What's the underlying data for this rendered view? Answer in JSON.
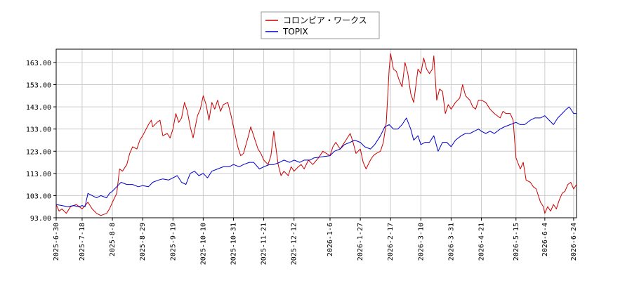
{
  "chart_data": {
    "type": "line",
    "title": "",
    "xlabel": "",
    "ylabel": "",
    "ylim": [
      93,
      169
    ],
    "y_ticks": [
      "163.00",
      "153.00",
      "143.00",
      "133.00",
      "123.00",
      "113.00",
      "103.00",
      "93.00"
    ],
    "x_ticks": [
      "2025-6-30",
      "2025-7-18",
      "2025-8-8",
      "2025-8-29",
      "2025-9-19",
      "2025-10-10",
      "2025-10-31",
      "2025-11-21",
      "2025-12-12",
      "2026-1-6",
      "2026-1-27",
      "2026-2-17",
      "2026-3-10",
      "2026-3-31",
      "2026-4-21",
      "2026-5-15",
      "2026-6-4",
      "2026-6-24"
    ],
    "x_range": [
      "2025-6-30",
      "2026-6-26"
    ],
    "grid": true,
    "legend_position": "top-center",
    "series": [
      {
        "name": "コロンビア・ワークス",
        "color": "#cc0000",
        "points": [
          [
            "2025-6-30",
            99
          ],
          [
            "2025-7-2",
            96
          ],
          [
            "2025-7-4",
            97
          ],
          [
            "2025-7-7",
            95
          ],
          [
            "2025-7-10",
            98
          ],
          [
            "2025-7-14",
            99
          ],
          [
            "2025-7-16",
            98
          ],
          [
            "2025-7-18",
            97
          ],
          [
            "2025-7-22",
            100
          ],
          [
            "2025-7-25",
            97
          ],
          [
            "2025-7-28",
            95
          ],
          [
            "2025-7-31",
            94
          ],
          [
            "2025-8-4",
            95
          ],
          [
            "2025-8-6",
            97
          ],
          [
            "2025-8-8",
            100
          ],
          [
            "2025-8-11",
            104
          ],
          [
            "2025-8-13",
            115
          ],
          [
            "2025-8-15",
            114
          ],
          [
            "2025-8-18",
            117
          ],
          [
            "2025-8-20",
            122
          ],
          [
            "2025-8-22",
            125
          ],
          [
            "2025-8-25",
            124
          ],
          [
            "2025-8-27",
            128
          ],
          [
            "2025-8-29",
            130
          ],
          [
            "2025-9-2",
            135
          ],
          [
            "2025-9-4",
            137
          ],
          [
            "2025-9-5",
            134
          ],
          [
            "2025-9-8",
            136
          ],
          [
            "2025-9-10",
            137
          ],
          [
            "2025-9-12",
            130
          ],
          [
            "2025-9-15",
            131
          ],
          [
            "2025-9-17",
            129
          ],
          [
            "2025-9-19",
            133
          ],
          [
            "2025-9-21",
            140
          ],
          [
            "2025-9-23",
            136
          ],
          [
            "2025-9-25",
            138
          ],
          [
            "2025-9-27",
            145
          ],
          [
            "2025-9-29",
            141
          ],
          [
            "2025-10-1",
            134
          ],
          [
            "2025-10-3",
            129
          ],
          [
            "2025-10-6",
            139
          ],
          [
            "2025-10-8",
            142
          ],
          [
            "2025-10-10",
            148
          ],
          [
            "2025-10-12",
            144
          ],
          [
            "2025-10-14",
            137
          ],
          [
            "2025-10-16",
            145
          ],
          [
            "2025-10-18",
            142
          ],
          [
            "2025-10-20",
            146
          ],
          [
            "2025-10-22",
            141
          ],
          [
            "2025-10-24",
            144
          ],
          [
            "2025-10-27",
            145
          ],
          [
            "2025-10-29",
            140
          ],
          [
            "2025-10-31",
            134
          ],
          [
            "2025-11-3",
            125
          ],
          [
            "2025-11-5",
            121
          ],
          [
            "2025-11-7",
            122
          ],
          [
            "2025-11-10",
            129
          ],
          [
            "2025-11-12",
            134
          ],
          [
            "2025-11-14",
            130
          ],
          [
            "2025-11-17",
            124
          ],
          [
            "2025-11-19",
            122
          ],
          [
            "2025-11-21",
            119
          ],
          [
            "2025-11-24",
            117
          ],
          [
            "2025-11-26",
            121
          ],
          [
            "2025-11-28",
            132
          ],
          [
            "2025-12-1",
            117
          ],
          [
            "2025-12-3",
            112
          ],
          [
            "2025-12-5",
            114
          ],
          [
            "2025-12-8",
            112
          ],
          [
            "2025-12-10",
            116
          ],
          [
            "2025-12-12",
            114
          ],
          [
            "2025-12-15",
            116
          ],
          [
            "2025-12-17",
            117
          ],
          [
            "2025-12-19",
            115
          ],
          [
            "2025-12-22",
            119
          ],
          [
            "2025-12-25",
            117
          ],
          [
            "2025-12-29",
            120
          ],
          [
            "2026-1-1",
            123
          ],
          [
            "2026-1-6",
            121
          ],
          [
            "2026-1-8",
            125
          ],
          [
            "2026-1-10",
            127
          ],
          [
            "2026-1-13",
            124
          ],
          [
            "2026-1-15",
            126
          ],
          [
            "2026-1-17",
            128
          ],
          [
            "2026-1-20",
            131
          ],
          [
            "2026-1-22",
            127
          ],
          [
            "2026-1-24",
            122
          ],
          [
            "2026-1-27",
            124
          ],
          [
            "2026-1-29",
            118
          ],
          [
            "2026-1-31",
            115
          ],
          [
            "2026-2-3",
            119
          ],
          [
            "2026-2-5",
            121
          ],
          [
            "2026-2-7",
            122
          ],
          [
            "2026-2-10",
            123
          ],
          [
            "2026-2-12",
            127
          ],
          [
            "2026-2-14",
            136
          ],
          [
            "2026-2-16",
            160
          ],
          [
            "2026-2-17",
            167
          ],
          [
            "2026-2-19",
            160
          ],
          [
            "2026-2-21",
            159
          ],
          [
            "2026-2-23",
            155
          ],
          [
            "2026-2-25",
            152
          ],
          [
            "2026-2-27",
            163
          ],
          [
            "2026-3-1",
            158
          ],
          [
            "2026-3-3",
            149
          ],
          [
            "2026-3-5",
            145
          ],
          [
            "2026-3-7",
            155
          ],
          [
            "2026-3-8",
            160
          ],
          [
            "2026-3-10",
            158
          ],
          [
            "2026-3-12",
            165
          ],
          [
            "2026-3-14",
            160
          ],
          [
            "2026-3-16",
            158
          ],
          [
            "2026-3-18",
            160
          ],
          [
            "2026-3-19",
            166
          ],
          [
            "2026-3-21",
            146
          ],
          [
            "2026-3-23",
            151
          ],
          [
            "2026-3-25",
            150
          ],
          [
            "2026-3-27",
            140
          ],
          [
            "2026-3-29",
            144
          ],
          [
            "2026-3-31",
            142
          ],
          [
            "2026-4-3",
            145
          ],
          [
            "2026-4-6",
            147
          ],
          [
            "2026-4-8",
            153
          ],
          [
            "2026-4-10",
            148
          ],
          [
            "2026-4-13",
            146
          ],
          [
            "2026-4-15",
            143
          ],
          [
            "2026-4-17",
            142
          ],
          [
            "2026-4-19",
            146
          ],
          [
            "2026-4-21",
            146
          ],
          [
            "2026-4-24",
            145
          ],
          [
            "2026-4-27",
            142
          ],
          [
            "2026-4-30",
            140
          ],
          [
            "2026-5-4",
            138
          ],
          [
            "2026-5-6",
            141
          ],
          [
            "2026-5-8",
            140
          ],
          [
            "2026-5-11",
            140
          ],
          [
            "2026-5-13",
            137
          ],
          [
            "2026-5-15",
            120
          ],
          [
            "2026-5-18",
            115
          ],
          [
            "2026-5-20",
            118
          ],
          [
            "2026-5-22",
            110
          ],
          [
            "2026-5-25",
            109
          ],
          [
            "2026-5-27",
            107
          ],
          [
            "2026-5-29",
            106
          ],
          [
            "2026-6-1",
            100
          ],
          [
            "2026-6-3",
            98
          ],
          [
            "2026-6-4",
            95
          ],
          [
            "2026-6-6",
            98
          ],
          [
            "2026-6-8",
            96
          ],
          [
            "2026-6-10",
            99
          ],
          [
            "2026-6-12",
            97
          ],
          [
            "2026-6-14",
            101
          ],
          [
            "2026-6-16",
            104
          ],
          [
            "2026-6-18",
            105
          ],
          [
            "2026-6-20",
            108
          ],
          [
            "2026-6-22",
            109
          ],
          [
            "2026-6-24",
            106
          ],
          [
            "2026-6-26",
            108
          ]
        ]
      },
      {
        "name": "TOPIX",
        "color": "#0000cc",
        "points": [
          [
            "2025-6-30",
            99
          ],
          [
            "2025-7-4",
            98.5
          ],
          [
            "2025-7-8",
            98
          ],
          [
            "2025-7-12",
            98.5
          ],
          [
            "2025-7-16",
            98
          ],
          [
            "2025-7-18",
            98.5
          ],
          [
            "2025-7-20",
            98
          ],
          [
            "2025-7-22",
            104
          ],
          [
            "2025-7-25",
            103
          ],
          [
            "2025-7-28",
            102
          ],
          [
            "2025-7-31",
            103
          ],
          [
            "2025-8-4",
            102
          ],
          [
            "2025-8-6",
            104
          ],
          [
            "2025-8-8",
            105
          ],
          [
            "2025-8-11",
            107
          ],
          [
            "2025-8-14",
            109
          ],
          [
            "2025-8-18",
            108
          ],
          [
            "2025-8-22",
            108
          ],
          [
            "2025-8-26",
            107
          ],
          [
            "2025-8-29",
            107.5
          ],
          [
            "2025-9-2",
            107
          ],
          [
            "2025-9-5",
            109
          ],
          [
            "2025-9-9",
            110
          ],
          [
            "2025-9-12",
            110.5
          ],
          [
            "2025-9-16",
            110
          ],
          [
            "2025-9-19",
            111
          ],
          [
            "2025-9-22",
            112
          ],
          [
            "2025-9-25",
            109
          ],
          [
            "2025-9-28",
            108
          ],
          [
            "2025-10-1",
            113
          ],
          [
            "2025-10-4",
            114
          ],
          [
            "2025-10-7",
            112
          ],
          [
            "2025-10-10",
            113
          ],
          [
            "2025-10-13",
            111
          ],
          [
            "2025-10-16",
            114
          ],
          [
            "2025-10-20",
            115
          ],
          [
            "2025-10-24",
            116
          ],
          [
            "2025-10-28",
            116
          ],
          [
            "2025-10-31",
            117
          ],
          [
            "2025-11-4",
            116
          ],
          [
            "2025-11-7",
            117
          ],
          [
            "2025-11-11",
            118
          ],
          [
            "2025-11-14",
            118
          ],
          [
            "2025-11-18",
            115
          ],
          [
            "2025-11-21",
            116
          ],
          [
            "2025-11-25",
            117
          ],
          [
            "2025-11-28",
            117
          ],
          [
            "2025-12-2",
            118
          ],
          [
            "2025-12-5",
            119
          ],
          [
            "2025-12-9",
            118
          ],
          [
            "2025-12-12",
            119
          ],
          [
            "2025-12-16",
            118
          ],
          [
            "2025-12-19",
            119
          ],
          [
            "2025-12-23",
            119
          ],
          [
            "2025-12-26",
            120
          ],
          [
            "2026-1-6",
            121
          ],
          [
            "2026-1-9",
            123
          ],
          [
            "2026-1-13",
            124
          ],
          [
            "2026-1-16",
            126
          ],
          [
            "2026-1-20",
            127
          ],
          [
            "2026-1-23",
            128
          ],
          [
            "2026-1-27",
            127
          ],
          [
            "2026-1-30",
            125
          ],
          [
            "2026-2-3",
            124
          ],
          [
            "2026-2-6",
            126
          ],
          [
            "2026-2-10",
            130
          ],
          [
            "2026-2-13",
            134
          ],
          [
            "2026-2-16",
            135
          ],
          [
            "2026-2-19",
            133
          ],
          [
            "2026-2-22",
            133
          ],
          [
            "2026-2-25",
            135
          ],
          [
            "2026-2-28",
            138
          ],
          [
            "2026-3-3",
            133
          ],
          [
            "2026-3-5",
            128
          ],
          [
            "2026-3-8",
            130
          ],
          [
            "2026-3-10",
            126
          ],
          [
            "2026-3-13",
            127
          ],
          [
            "2026-3-16",
            127
          ],
          [
            "2026-3-19",
            130
          ],
          [
            "2026-3-22",
            123
          ],
          [
            "2026-3-25",
            127
          ],
          [
            "2026-3-28",
            127
          ],
          [
            "2026-3-31",
            125
          ],
          [
            "2026-4-3",
            128
          ],
          [
            "2026-4-7",
            130
          ],
          [
            "2026-4-10",
            131
          ],
          [
            "2026-4-13",
            131
          ],
          [
            "2026-4-16",
            132
          ],
          [
            "2026-4-19",
            133
          ],
          [
            "2026-4-21",
            132
          ],
          [
            "2026-4-24",
            131
          ],
          [
            "2026-4-27",
            132
          ],
          [
            "2026-4-30",
            131
          ],
          [
            "2026-5-4",
            133
          ],
          [
            "2026-5-7",
            134
          ],
          [
            "2026-5-11",
            135
          ],
          [
            "2026-5-15",
            136
          ],
          [
            "2026-5-18",
            135
          ],
          [
            "2026-5-21",
            135
          ],
          [
            "2026-5-25",
            137
          ],
          [
            "2026-5-28",
            138
          ],
          [
            "2026-6-1",
            138
          ],
          [
            "2026-6-4",
            139
          ],
          [
            "2026-6-7",
            137
          ],
          [
            "2026-6-10",
            135
          ],
          [
            "2026-6-13",
            138
          ],
          [
            "2026-6-16",
            140
          ],
          [
            "2026-6-19",
            142
          ],
          [
            "2026-6-21",
            143
          ],
          [
            "2026-6-23",
            141
          ],
          [
            "2026-6-24",
            140
          ],
          [
            "2026-6-26",
            140
          ]
        ]
      }
    ]
  }
}
